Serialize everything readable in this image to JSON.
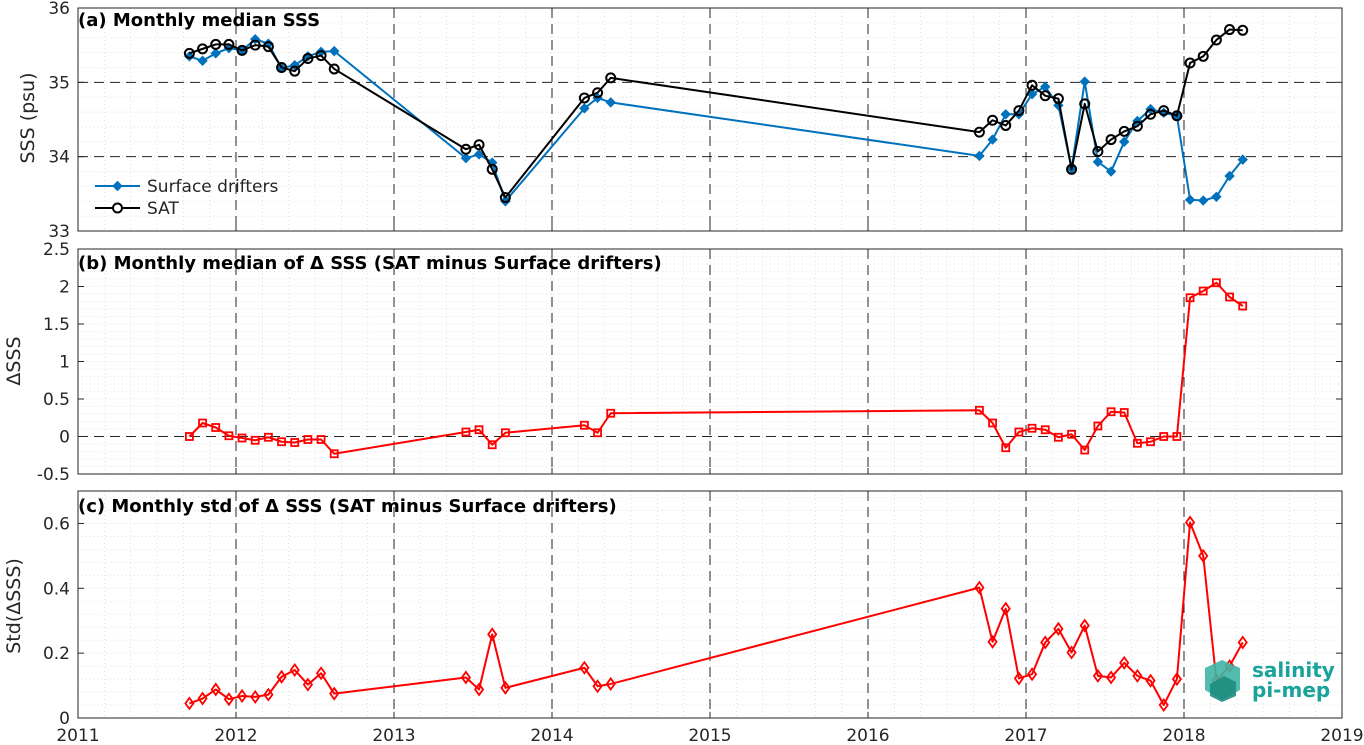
{
  "x_ticks": [
    "2011",
    "2012",
    "2013",
    "2014",
    "2015",
    "2016",
    "2017",
    "2018",
    "2019"
  ],
  "colors": {
    "drifters": "#0072BD",
    "sat": "#000000",
    "delta": "#FF0000",
    "logo": "#1aa39a"
  },
  "logo": {
    "line1": "salinity",
    "line2": "pi-mep"
  },
  "chart_data": [
    {
      "type": "line",
      "title": "(a) Monthly median SSS",
      "ylabel": "SSS (psu)",
      "ylim": [
        33,
        36
      ],
      "yticks": [
        "33",
        "34",
        "35",
        "36"
      ],
      "xlim": [
        "2011-01-01",
        "2019-01-01"
      ],
      "grid": true,
      "legend_position": "left",
      "series": [
        {
          "name": "Surface drifters",
          "color": "#0072BD",
          "marker": "diamond-filled",
          "points": [
            [
              "2011-09-15",
              35.35
            ],
            [
              "2011-10-15",
              35.29
            ],
            [
              "2011-11-15",
              35.39
            ],
            [
              "2011-12-15",
              35.46
            ],
            [
              "2012-01-15",
              35.43
            ],
            [
              "2012-02-15",
              35.58
            ],
            [
              "2012-03-15",
              35.52
            ],
            [
              "2012-04-15",
              35.19
            ],
            [
              "2012-05-15",
              35.23
            ],
            [
              "2012-06-15",
              35.35
            ],
            [
              "2012-07-15",
              35.41
            ],
            [
              "2012-08-15",
              35.42
            ],
            [
              "2013-06-15",
              33.98
            ],
            [
              "2013-07-15",
              34.03
            ],
            [
              "2013-08-15",
              33.92
            ],
            [
              "2013-09-15",
              33.4
            ],
            [
              "2014-03-15",
              34.65
            ],
            [
              "2014-04-15",
              34.79
            ],
            [
              "2014-05-15",
              34.73
            ],
            [
              "2016-09-15",
              34.01
            ],
            [
              "2016-10-15",
              34.23
            ],
            [
              "2016-11-15",
              34.57
            ],
            [
              "2016-12-15",
              34.57
            ],
            [
              "2017-01-15",
              34.84
            ],
            [
              "2017-02-15",
              34.94
            ],
            [
              "2017-03-15",
              34.69
            ],
            [
              "2017-04-15",
              33.84
            ],
            [
              "2017-05-15",
              35.01
            ],
            [
              "2017-06-15",
              33.93
            ],
            [
              "2017-07-15",
              33.8
            ],
            [
              "2017-08-15",
              34.2
            ],
            [
              "2017-09-15",
              34.48
            ],
            [
              "2017-10-15",
              34.64
            ],
            [
              "2017-11-15",
              34.59
            ],
            [
              "2017-12-15",
              34.55
            ],
            [
              "2018-01-15",
              33.42
            ],
            [
              "2018-02-15",
              33.41
            ],
            [
              "2018-03-15",
              33.46
            ],
            [
              "2018-04-15",
              33.74
            ],
            [
              "2018-05-15",
              33.96
            ]
          ]
        },
        {
          "name": "SAT",
          "color": "#000000",
          "marker": "circle-open",
          "points": [
            [
              "2011-09-15",
              35.39
            ],
            [
              "2011-10-15",
              35.45
            ],
            [
              "2011-11-15",
              35.51
            ],
            [
              "2011-12-15",
              35.51
            ],
            [
              "2012-01-15",
              35.43
            ],
            [
              "2012-02-15",
              35.5
            ],
            [
              "2012-03-15",
              35.48
            ],
            [
              "2012-04-15",
              35.2
            ],
            [
              "2012-05-15",
              35.15
            ],
            [
              "2012-06-15",
              35.32
            ],
            [
              "2012-07-15",
              35.36
            ],
            [
              "2012-08-15",
              35.18
            ],
            [
              "2013-06-15",
              34.1
            ],
            [
              "2013-07-15",
              34.16
            ],
            [
              "2013-08-15",
              33.83
            ],
            [
              "2013-09-15",
              33.45
            ],
            [
              "2014-03-15",
              34.79
            ],
            [
              "2014-04-15",
              34.86
            ],
            [
              "2014-05-15",
              35.06
            ],
            [
              "2016-09-15",
              34.33
            ],
            [
              "2016-10-15",
              34.49
            ],
            [
              "2016-11-15",
              34.42
            ],
            [
              "2016-12-15",
              34.62
            ],
            [
              "2017-01-15",
              34.96
            ],
            [
              "2017-02-15",
              34.82
            ],
            [
              "2017-03-15",
              34.78
            ],
            [
              "2017-04-15",
              33.83
            ],
            [
              "2017-05-15",
              34.71
            ],
            [
              "2017-06-15",
              34.07
            ],
            [
              "2017-07-15",
              34.23
            ],
            [
              "2017-08-15",
              34.34
            ],
            [
              "2017-09-15",
              34.41
            ],
            [
              "2017-10-15",
              34.57
            ],
            [
              "2017-11-15",
              34.62
            ],
            [
              "2017-12-15",
              34.55
            ],
            [
              "2018-01-15",
              35.26
            ],
            [
              "2018-02-15",
              35.35
            ],
            [
              "2018-03-15",
              35.57
            ],
            [
              "2018-04-15",
              35.71
            ],
            [
              "2018-05-15",
              35.7
            ]
          ]
        }
      ]
    },
    {
      "type": "line",
      "title": "(b) Monthly median of Δ SSS (SAT minus Surface drifters)",
      "ylabel": "ΔSSS",
      "ylim": [
        -0.5,
        2.5
      ],
      "yticks": [
        "-0.5",
        "0",
        "0.5",
        "1",
        "1.5",
        "2",
        "2.5"
      ],
      "xlim": [
        "2011-01-01",
        "2019-01-01"
      ],
      "grid": true,
      "zero_line": true,
      "series": [
        {
          "color": "#FF0000",
          "marker": "square-open",
          "points": [
            [
              "2011-09-15",
              0.0
            ],
            [
              "2011-10-15",
              0.18
            ],
            [
              "2011-11-15",
              0.12
            ],
            [
              "2011-12-15",
              0.01
            ],
            [
              "2012-01-15",
              -0.02
            ],
            [
              "2012-02-15",
              -0.05
            ],
            [
              "2012-03-15",
              -0.01
            ],
            [
              "2012-04-15",
              -0.07
            ],
            [
              "2012-05-15",
              -0.08
            ],
            [
              "2012-06-15",
              -0.04
            ],
            [
              "2012-07-15",
              -0.04
            ],
            [
              "2012-08-15",
              -0.23
            ],
            [
              "2013-06-15",
              0.06
            ],
            [
              "2013-07-15",
              0.09
            ],
            [
              "2013-08-15",
              -0.11
            ],
            [
              "2013-09-15",
              0.05
            ],
            [
              "2014-03-15",
              0.15
            ],
            [
              "2014-04-15",
              0.05
            ],
            [
              "2014-05-15",
              0.31
            ],
            [
              "2016-09-15",
              0.35
            ],
            [
              "2016-10-15",
              0.18
            ],
            [
              "2016-11-15",
              -0.15
            ],
            [
              "2016-12-15",
              0.06
            ],
            [
              "2017-01-15",
              0.11
            ],
            [
              "2017-02-15",
              0.09
            ],
            [
              "2017-03-15",
              -0.01
            ],
            [
              "2017-04-15",
              0.03
            ],
            [
              "2017-05-15",
              -0.18
            ],
            [
              "2017-06-15",
              0.14
            ],
            [
              "2017-07-15",
              0.33
            ],
            [
              "2017-08-15",
              0.32
            ],
            [
              "2017-09-15",
              -0.09
            ],
            [
              "2017-10-15",
              -0.07
            ],
            [
              "2017-11-15",
              0.0
            ],
            [
              "2017-12-15",
              0.0
            ],
            [
              "2018-01-15",
              1.85
            ],
            [
              "2018-02-15",
              1.94
            ],
            [
              "2018-03-15",
              2.05
            ],
            [
              "2018-04-15",
              1.86
            ],
            [
              "2018-05-15",
              1.74
            ]
          ]
        }
      ]
    },
    {
      "type": "line",
      "title": "(c) Monthly std of Δ SSS (SAT minus Surface drifters)",
      "ylabel": "Std(ΔSSS)",
      "ylim": [
        0,
        0.7
      ],
      "yticks": [
        "0",
        "0.2",
        "0.4",
        "0.6"
      ],
      "xlim": [
        "2011-01-01",
        "2019-01-01"
      ],
      "grid": true,
      "series": [
        {
          "color": "#FF0000",
          "marker": "diamond-open",
          "points": [
            [
              "2011-09-15",
              0.045
            ],
            [
              "2011-10-15",
              0.06
            ],
            [
              "2011-11-15",
              0.088
            ],
            [
              "2011-12-15",
              0.058
            ],
            [
              "2012-01-15",
              0.068
            ],
            [
              "2012-02-15",
              0.065
            ],
            [
              "2012-03-15",
              0.072
            ],
            [
              "2012-04-15",
              0.127
            ],
            [
              "2012-05-15",
              0.148
            ],
            [
              "2012-06-15",
              0.103
            ],
            [
              "2012-07-15",
              0.138
            ],
            [
              "2012-08-15",
              0.075
            ],
            [
              "2013-06-15",
              0.125
            ],
            [
              "2013-07-15",
              0.088
            ],
            [
              "2013-08-15",
              0.258
            ],
            [
              "2013-09-15",
              0.093
            ],
            [
              "2014-03-15",
              0.155
            ],
            [
              "2014-04-15",
              0.098
            ],
            [
              "2014-05-15",
              0.105
            ],
            [
              "2016-09-15",
              0.402
            ],
            [
              "2016-10-15",
              0.235
            ],
            [
              "2016-11-15",
              0.337
            ],
            [
              "2016-12-15",
              0.122
            ],
            [
              "2017-01-15",
              0.135
            ],
            [
              "2017-02-15",
              0.233
            ],
            [
              "2017-03-15",
              0.275
            ],
            [
              "2017-04-15",
              0.202
            ],
            [
              "2017-05-15",
              0.285
            ],
            [
              "2017-06-15",
              0.13
            ],
            [
              "2017-07-15",
              0.125
            ],
            [
              "2017-08-15",
              0.17
            ],
            [
              "2017-09-15",
              0.13
            ],
            [
              "2017-10-15",
              0.115
            ],
            [
              "2017-11-15",
              0.04
            ],
            [
              "2017-12-15",
              0.12
            ],
            [
              "2018-01-15",
              0.603
            ],
            [
              "2018-02-15",
              0.5
            ],
            [
              "2018-03-15",
              0.115
            ],
            [
              "2018-04-15",
              0.16
            ],
            [
              "2018-05-15",
              0.233
            ]
          ]
        }
      ]
    }
  ]
}
